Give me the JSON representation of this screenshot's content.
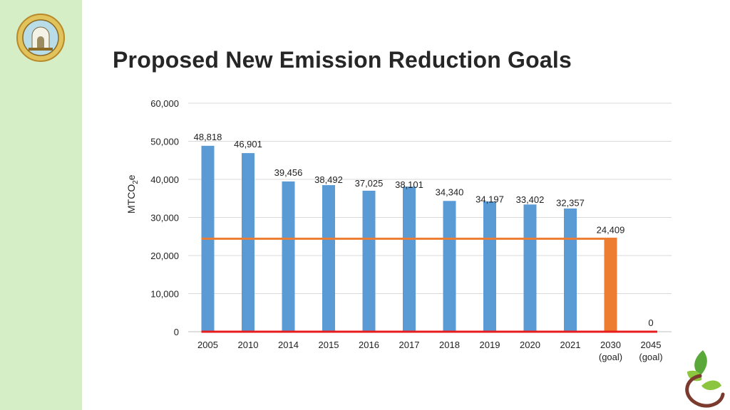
{
  "slide": {
    "title": "Proposed New Emission Reduction Goals",
    "accent_band_color": "#d6eec5"
  },
  "logos": {
    "left": "city-seal-icon",
    "bottom_right": "sprout-leaf-icon"
  },
  "chart_data": {
    "type": "bar",
    "title": "",
    "xlabel": "",
    "ylabel": "MTCO2e",
    "ylabel_main": "MTCO",
    "ylabel_sub": "2",
    "ylabel_suffix": "e",
    "ylim": [
      0,
      60000
    ],
    "yticks": [
      0,
      10000,
      20000,
      30000,
      40000,
      50000,
      60000
    ],
    "ytick_labels": [
      "0",
      "10,000",
      "20,000",
      "30,000",
      "40,000",
      "50,000",
      "60,000"
    ],
    "grid": true,
    "categories": [
      [
        "2005"
      ],
      [
        "2010"
      ],
      [
        "2014"
      ],
      [
        "2015"
      ],
      [
        "2016"
      ],
      [
        "2017"
      ],
      [
        "2018"
      ],
      [
        "2019"
      ],
      [
        "2020"
      ],
      [
        "2021"
      ],
      [
        "2030",
        "(goal)"
      ],
      [
        "2045",
        "(goal)"
      ]
    ],
    "values": [
      48818,
      46901,
      39456,
      38492,
      37025,
      38101,
      34340,
      34197,
      33402,
      32357,
      24409,
      0
    ],
    "value_labels": [
      "48,818",
      "46,901",
      "39,456",
      "38,492",
      "37,025",
      "38,101",
      "34,340",
      "34,197",
      "33,402",
      "32,357",
      "24,409",
      "0"
    ],
    "bar_colors": [
      "#5b9bd5",
      "#5b9bd5",
      "#5b9bd5",
      "#5b9bd5",
      "#5b9bd5",
      "#5b9bd5",
      "#5b9bd5",
      "#5b9bd5",
      "#5b9bd5",
      "#5b9bd5",
      "#ed7d31",
      "#ed7d31"
    ],
    "reference_lines": [
      {
        "name": "2030-goal-line",
        "value": 24409,
        "from": "2005",
        "to": "2030",
        "color": "#ed7d31"
      },
      {
        "name": "2045-goal-line",
        "value": 0,
        "from": "2005",
        "to": "2045",
        "color": "#e81c1c"
      }
    ]
  }
}
